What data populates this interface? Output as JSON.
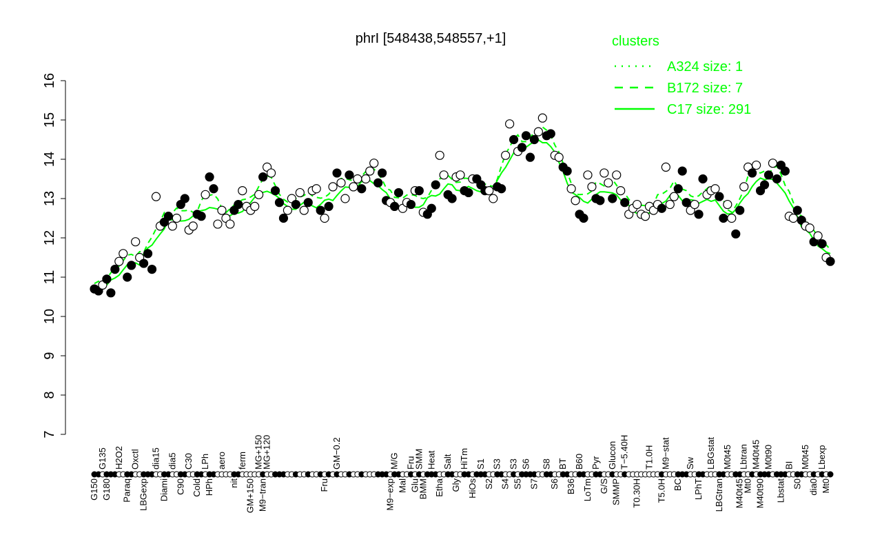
{
  "chart_data": {
    "type": "scatter",
    "title": "phrI [548438,548557,+1]",
    "xlabel": "",
    "ylabel": "",
    "ylim": [
      7,
      16
    ],
    "yticks": [
      7,
      8,
      9,
      10,
      11,
      12,
      13,
      14,
      15,
      16
    ],
    "grid": false,
    "legend": {
      "title": "clusters",
      "placement": "top-right",
      "entries": [
        {
          "label": "A324 size: 1",
          "style": "dotted"
        },
        {
          "label": "B172 size: 7",
          "style": "dashed"
        },
        {
          "label": "C17 size: 291",
          "style": "solid"
        }
      ]
    },
    "colors": {
      "lines": "#00ff00",
      "points": "#000000"
    },
    "points": [
      [
        "G150",
        10.7,
        1
      ],
      [
        "",
        10.65,
        1
      ],
      [
        "G135",
        10.8,
        0
      ],
      [
        "G180",
        10.95,
        1
      ],
      [
        "",
        10.6,
        1
      ],
      [
        "",
        11.2,
        1
      ],
      [
        "H2O2",
        11.4,
        0
      ],
      [
        "",
        11.6,
        0
      ],
      [
        "Paraq",
        11.0,
        1
      ],
      [
        "",
        11.3,
        1
      ],
      [
        "Oxctl",
        11.9,
        0
      ],
      [
        "",
        11.5,
        0
      ],
      [
        "LBGexp",
        11.35,
        1
      ],
      [
        "",
        11.6,
        1
      ],
      [
        "",
        11.2,
        1
      ],
      [
        "dia15",
        13.05,
        0
      ],
      [
        "",
        12.3,
        0
      ],
      [
        "Diami",
        12.4,
        1
      ],
      [
        "",
        12.55,
        1
      ],
      [
        "dia5",
        12.3,
        0
      ],
      [
        "",
        12.5,
        0
      ],
      [
        "C90",
        12.85,
        1
      ],
      [
        "",
        13.0,
        1
      ],
      [
        "C30",
        12.2,
        0
      ],
      [
        "",
        12.3,
        0
      ],
      [
        "Cold",
        12.6,
        1
      ],
      [
        "",
        12.55,
        1
      ],
      [
        "LPh",
        13.1,
        0
      ],
      [
        "HPh",
        13.55,
        1
      ],
      [
        "",
        13.25,
        1
      ],
      [
        "",
        12.35,
        0
      ],
      [
        "aero",
        12.7,
        0
      ],
      [
        "",
        12.5,
        0
      ],
      [
        "",
        12.35,
        0
      ],
      [
        "nit",
        12.7,
        1
      ],
      [
        "",
        12.85,
        1
      ],
      [
        "ferm",
        13.2,
        0
      ],
      [
        "",
        12.8,
        0
      ],
      [
        "GM+150",
        12.7,
        0
      ],
      [
        "",
        12.8,
        0
      ],
      [
        "MG+150",
        13.1,
        0
      ],
      [
        "M9−tran",
        13.55,
        1
      ],
      [
        "MG+120",
        13.8,
        0
      ],
      [
        "",
        13.65,
        0
      ],
      [
        "",
        13.2,
        1
      ],
      [
        "",
        12.9,
        1
      ],
      [
        "",
        12.5,
        1
      ],
      [
        "",
        12.7,
        0
      ],
      [
        "",
        13.0,
        0
      ],
      [
        "",
        12.85,
        1
      ],
      [
        "",
        13.15,
        0
      ],
      [
        "",
        12.7,
        0
      ],
      [
        "",
        12.9,
        1
      ],
      [
        "",
        13.2,
        0
      ],
      [
        "",
        13.25,
        0
      ],
      [
        "",
        12.7,
        1
      ],
      [
        "Fru",
        12.5,
        0
      ],
      [
        "",
        12.8,
        1
      ],
      [
        "",
        13.3,
        0
      ],
      [
        "GM−0.2",
        13.65,
        1
      ],
      [
        "",
        13.4,
        0
      ],
      [
        "",
        13.0,
        0
      ],
      [
        "",
        13.6,
        1
      ],
      [
        "",
        13.3,
        0
      ],
      [
        "",
        13.5,
        0
      ],
      [
        "",
        13.25,
        1
      ],
      [
        "",
        13.5,
        0
      ],
      [
        "",
        13.7,
        0
      ],
      [
        "",
        13.9,
        0
      ],
      [
        "",
        13.4,
        1
      ],
      [
        "",
        13.65,
        1
      ],
      [
        "",
        12.95,
        1
      ],
      [
        "M9−exp",
        12.9,
        0
      ],
      [
        "M/G",
        12.8,
        1
      ],
      [
        "",
        13.15,
        1
      ],
      [
        "Mal",
        12.75,
        0
      ],
      [
        "",
        12.9,
        0
      ],
      [
        "Fru",
        12.85,
        1
      ],
      [
        "Glu",
        13.2,
        0
      ],
      [
        "SMM",
        13.2,
        1
      ],
      [
        "BMM",
        12.65,
        0
      ],
      [
        "",
        12.6,
        1
      ],
      [
        "Heat",
        12.75,
        1
      ],
      [
        "",
        13.35,
        1
      ],
      [
        "Etha",
        14.1,
        0
      ],
      [
        "",
        13.6,
        0
      ],
      [
        "Salt",
        13.1,
        1
      ],
      [
        "",
        13.0,
        1
      ],
      [
        "Gly",
        13.55,
        0
      ],
      [
        "",
        13.6,
        0
      ],
      [
        "HiTm",
        13.2,
        1
      ],
      [
        "",
        13.15,
        1
      ],
      [
        "HiOs",
        13.5,
        0
      ],
      [
        "",
        13.5,
        1
      ],
      [
        "S1",
        13.35,
        1
      ],
      [
        "",
        13.2,
        1
      ],
      [
        "S2",
        13.2,
        0
      ],
      [
        "",
        13.0,
        0
      ],
      [
        "S3",
        13.3,
        1
      ],
      [
        "",
        13.25,
        1
      ],
      [
        "S4",
        14.1,
        0
      ],
      [
        "",
        14.9,
        0
      ],
      [
        "S3",
        14.5,
        1
      ],
      [
        "S5",
        14.2,
        0
      ],
      [
        "",
        14.3,
        1
      ],
      [
        "S6",
        14.6,
        1
      ],
      [
        "",
        14.05,
        1
      ],
      [
        "S7",
        14.5,
        1
      ],
      [
        "",
        14.7,
        0
      ],
      [
        "",
        15.05,
        0
      ],
      [
        "S8",
        14.6,
        1
      ],
      [
        "",
        14.65,
        1
      ],
      [
        "S6",
        14.1,
        0
      ],
      [
        "",
        14.05,
        0
      ],
      [
        "BT",
        13.8,
        1
      ],
      [
        "",
        13.7,
        1
      ],
      [
        "B36",
        13.25,
        0
      ],
      [
        "",
        12.95,
        0
      ],
      [
        "B60",
        12.6,
        1
      ],
      [
        "",
        12.5,
        1
      ],
      [
        "LoTm",
        13.6,
        0
      ],
      [
        "",
        13.3,
        0
      ],
      [
        "Pyr",
        13.0,
        1
      ],
      [
        "",
        12.95,
        1
      ],
      [
        "G/S",
        13.65,
        0
      ],
      [
        "",
        13.4,
        0
      ],
      [
        "Glucon",
        13.0,
        1
      ],
      [
        "SMMP",
        13.6,
        0
      ],
      [
        "",
        13.2,
        0
      ],
      [
        "T−5.40H",
        12.9,
        1
      ],
      [
        "",
        12.6,
        0
      ],
      [
        "",
        12.75,
        0
      ],
      [
        "T0.30H",
        12.85,
        0
      ],
      [
        "",
        12.6,
        0
      ],
      [
        "",
        12.55,
        0
      ],
      [
        "T1.0H",
        12.8,
        0
      ],
      [
        "",
        12.7,
        0
      ],
      [
        "",
        12.85,
        0
      ],
      [
        "T5.0H",
        12.75,
        1
      ],
      [
        "M9−stat",
        13.8,
        0
      ],
      [
        "",
        12.85,
        0
      ],
      [
        "",
        13.05,
        0
      ],
      [
        "BC",
        13.25,
        1
      ],
      [
        "",
        13.7,
        1
      ],
      [
        "",
        12.9,
        1
      ],
      [
        "Sw",
        12.7,
        0
      ],
      [
        "",
        12.85,
        0
      ],
      [
        "LPhT",
        12.6,
        1
      ],
      [
        "",
        13.5,
        1
      ],
      [
        "",
        13.1,
        0
      ],
      [
        "LBGstat",
        13.2,
        0
      ],
      [
        "",
        13.25,
        0
      ],
      [
        "LBGtran",
        13.05,
        1
      ],
      [
        "",
        12.5,
        1
      ],
      [
        "M0t45",
        12.85,
        0
      ],
      [
        "",
        12.5,
        0
      ],
      [
        "",
        12.1,
        1
      ],
      [
        "M40t45",
        12.7,
        1
      ],
      [
        "Lbtran",
        13.3,
        0
      ],
      [
        "Mt0",
        13.8,
        0
      ],
      [
        "",
        13.65,
        1
      ],
      [
        "M40t45",
        13.85,
        0
      ],
      [
        "M40t90",
        13.2,
        1
      ],
      [
        "",
        13.35,
        1
      ],
      [
        "M0t90",
        13.6,
        1
      ],
      [
        "",
        13.9,
        0
      ],
      [
        "",
        13.5,
        1
      ],
      [
        "Lbstat",
        13.85,
        1
      ],
      [
        "",
        13.7,
        1
      ],
      [
        "BI",
        12.55,
        0
      ],
      [
        "",
        12.5,
        0
      ],
      [
        "S0",
        12.7,
        1
      ],
      [
        "",
        12.45,
        1
      ],
      [
        "M0t45",
        12.3,
        0
      ],
      [
        "",
        12.25,
        0
      ],
      [
        "dia0",
        11.9,
        1
      ],
      [
        "",
        12.05,
        0
      ],
      [
        "Lbexp",
        11.85,
        1
      ],
      [
        "Mt0",
        11.5,
        0
      ],
      [
        "",
        11.4,
        1
      ]
    ]
  }
}
